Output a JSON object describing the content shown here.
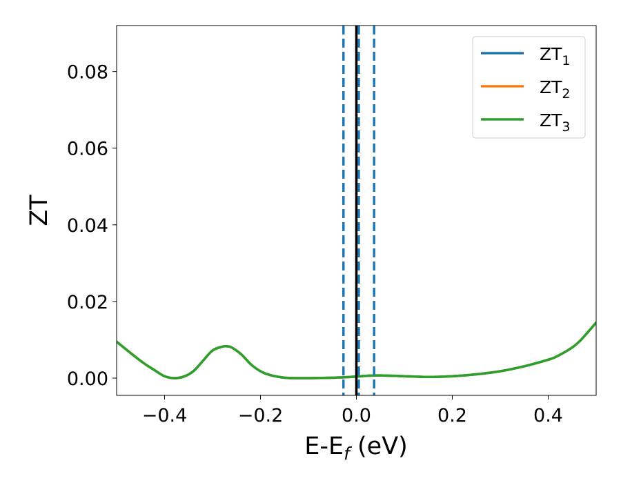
{
  "chart_data": {
    "type": "line",
    "xlabel": "E-E",
    "xlabel_sub": "f",
    "xlabel_unit": " (eV)",
    "ylabel": "ZT",
    "xlim": [
      -0.5,
      0.5
    ],
    "ylim": [
      -0.0045,
      0.092
    ],
    "xticks": [
      -0.4,
      -0.2,
      0.0,
      0.2,
      0.4
    ],
    "xtick_labels": [
      "−0.4",
      "−0.2",
      "0.0",
      "0.2",
      "0.4"
    ],
    "yticks": [
      0.0,
      0.02,
      0.04,
      0.06,
      0.08
    ],
    "ytick_labels": [
      "0.00",
      "0.02",
      "0.04",
      "0.06",
      "0.08"
    ],
    "grid": false,
    "legend_position": "top-right",
    "x": [
      -0.5,
      -0.45,
      -0.42,
      -0.4,
      -0.38,
      -0.36,
      -0.34,
      -0.32,
      -0.3,
      -0.28,
      -0.27,
      -0.26,
      -0.24,
      -0.22,
      -0.2,
      -0.18,
      -0.15,
      -0.12,
      -0.1,
      -0.05,
      0.0,
      0.02,
      0.05,
      0.1,
      0.15,
      0.2,
      0.25,
      0.3,
      0.35,
      0.4,
      0.42,
      0.45,
      0.47,
      0.5
    ],
    "series": [
      {
        "name": "ZT",
        "sub": "1",
        "color": "#1f77b4",
        "values": [
          0.0095,
          0.0045,
          0.002,
          0.0005,
          0.0,
          0.0004,
          0.0018,
          0.0045,
          0.0072,
          0.0082,
          0.0083,
          0.008,
          0.0062,
          0.0036,
          0.0018,
          0.0008,
          0.0001,
          0.0,
          0.0,
          0.0001,
          0.0004,
          0.0006,
          0.0007,
          0.0005,
          0.0003,
          0.0005,
          0.001,
          0.0018,
          0.0031,
          0.0048,
          0.0058,
          0.008,
          0.0102,
          0.0145
        ]
      },
      {
        "name": "ZT",
        "sub": "2",
        "color": "#ff7f0e",
        "values": [
          0.0095,
          0.0045,
          0.002,
          0.0005,
          0.0,
          0.0004,
          0.0018,
          0.0045,
          0.0072,
          0.0082,
          0.0083,
          0.008,
          0.0062,
          0.0036,
          0.0018,
          0.0008,
          0.0001,
          0.0,
          0.0,
          0.0001,
          0.0004,
          0.0006,
          0.0007,
          0.0005,
          0.0003,
          0.0005,
          0.001,
          0.0018,
          0.0031,
          0.0048,
          0.0058,
          0.008,
          0.0102,
          0.0145
        ]
      },
      {
        "name": "ZT",
        "sub": "3",
        "color": "#2ca02c",
        "values": [
          0.0095,
          0.0045,
          0.002,
          0.0005,
          0.0,
          0.0004,
          0.0018,
          0.0045,
          0.0072,
          0.0082,
          0.0083,
          0.008,
          0.0062,
          0.0036,
          0.0018,
          0.0008,
          0.0001,
          0.0,
          0.0,
          0.0001,
          0.0004,
          0.0006,
          0.0007,
          0.0005,
          0.0003,
          0.0005,
          0.001,
          0.0018,
          0.0031,
          0.0048,
          0.0058,
          0.008,
          0.0102,
          0.0145
        ]
      }
    ],
    "vlines": [
      {
        "x": -0.027,
        "style": "dashed",
        "color": "#1f77b4"
      },
      {
        "x": 0.005,
        "style": "dashed",
        "color": "#1f77b4"
      },
      {
        "x": 0.037,
        "style": "dashed",
        "color": "#1f77b4"
      },
      {
        "x": 0.0,
        "style": "solid",
        "color": "#000000"
      }
    ]
  }
}
